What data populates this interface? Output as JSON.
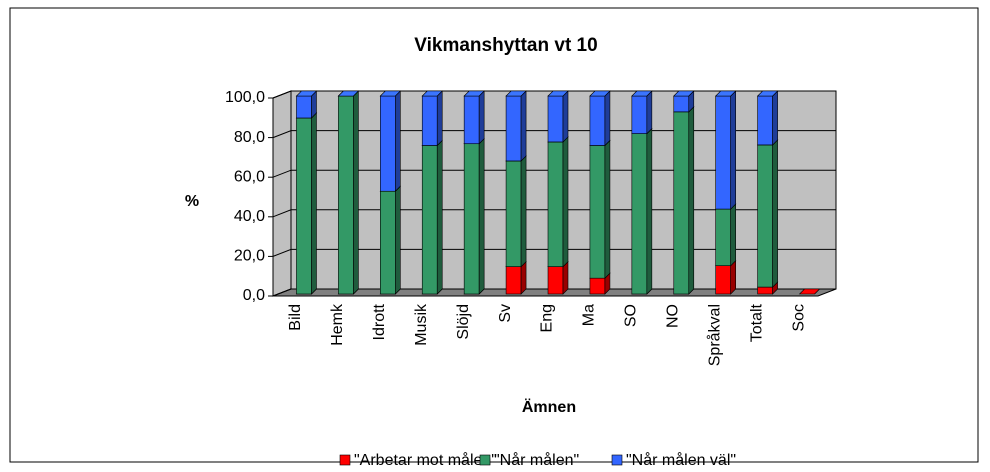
{
  "chart_data": {
    "type": "bar3d_stacked",
    "title": "Vikmanshyttan vt 10",
    "xlabel": "Ämnen",
    "ylabel": "%",
    "categories": [
      "Bild",
      "Hemk",
      "Idrott",
      "Musik",
      "Slöjd",
      "Sv",
      "Eng",
      "Ma",
      "SO",
      "NO",
      "Språkval",
      "Totalt",
      "Soc"
    ],
    "series": [
      {
        "name": "\"Arbetar mot målen\"",
        "color": "#ff0000",
        "values": [
          0,
          0,
          0,
          0,
          0,
          13.8,
          13.8,
          8.0,
          0,
          0,
          14.3,
          3.5,
          0
        ]
      },
      {
        "name": "\"Når målen\"",
        "color": "#339966",
        "values": [
          88.9,
          100,
          51.9,
          75.0,
          75.9,
          53.4,
          63.0,
          67.0,
          81.0,
          92.0,
          28.6,
          71.8,
          null
        ]
      },
      {
        "name": "\"Når målen väl\"",
        "color": "#3366ff",
        "values": [
          11.1,
          0,
          48.1,
          25.0,
          24.1,
          32.8,
          23.2,
          25.0,
          19.0,
          8.0,
          57.1,
          24.7,
          null
        ]
      }
    ],
    "ylim": [
      0,
      100
    ],
    "yticks": [
      {
        "value": 0,
        "label": "0,0"
      },
      {
        "value": 20,
        "label": "20,0"
      },
      {
        "value": 40,
        "label": "40,0"
      },
      {
        "value": 60,
        "label": "60,0"
      },
      {
        "value": 80,
        "label": "80,0"
      },
      {
        "value": 100,
        "label": "100,0"
      }
    ],
    "grid": true,
    "legend": "bottom"
  }
}
